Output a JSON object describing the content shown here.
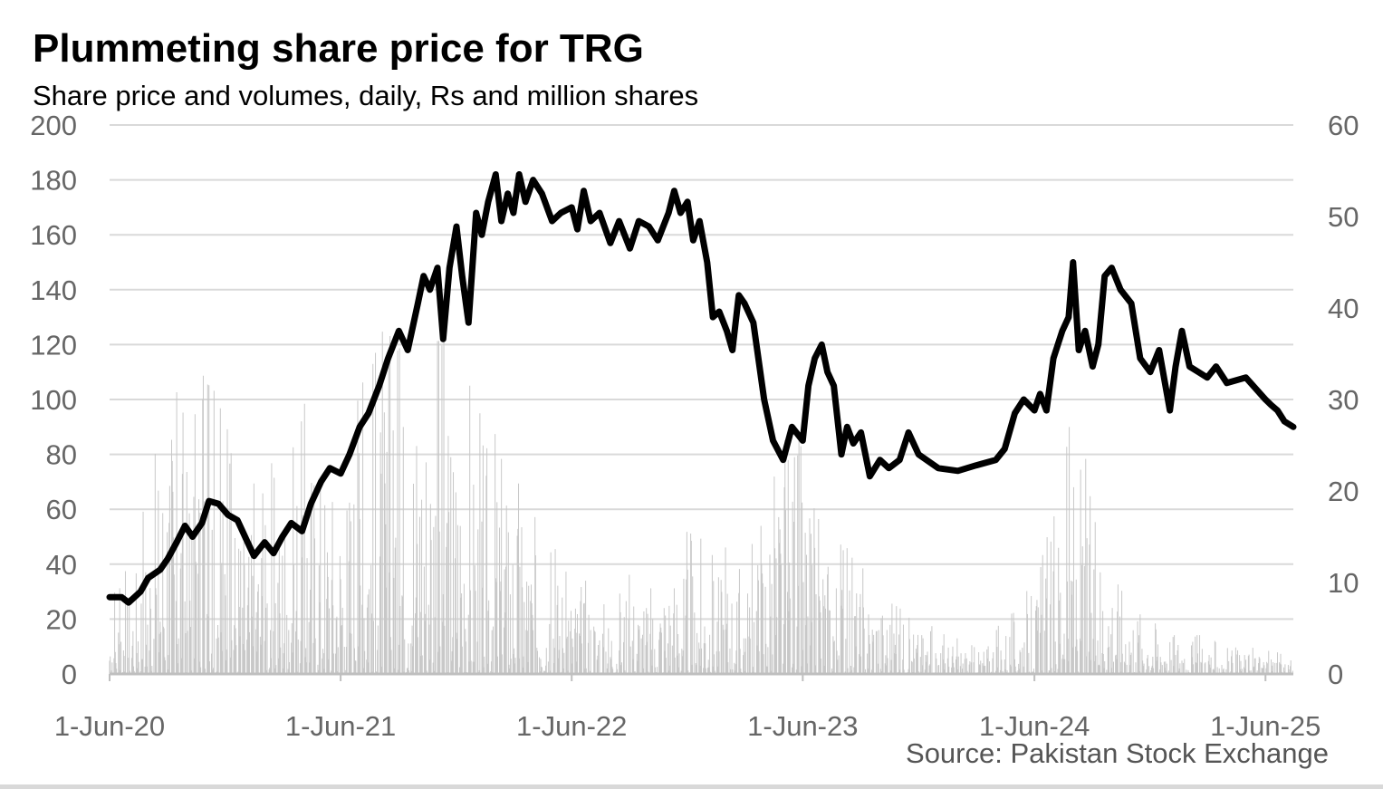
{
  "chart_data": {
    "type": "line",
    "title": "Plummeting share price for TRG",
    "subtitle": "Share price and volumes, daily, Rs and million shares",
    "source": "Source: Pakistan Stock Exchange",
    "x_tick_labels": [
      "1-Jun-20",
      "1-Jun-21",
      "1-Jun-22",
      "1-Jun-23",
      "1-Jun-24",
      "1-Jun-25"
    ],
    "x_tick_dates": [
      "2020-06-01",
      "2021-06-01",
      "2022-06-01",
      "2023-06-01",
      "2024-06-01",
      "2025-06-01"
    ],
    "xlim": [
      "2020-06-01",
      "2025-07-15"
    ],
    "y_left": {
      "ylim": [
        0,
        200
      ],
      "ticks": [
        0,
        20,
        40,
        60,
        80,
        100,
        120,
        140,
        160,
        180,
        200
      ]
    },
    "y_right": {
      "ylim": [
        0,
        60
      ],
      "ticks": [
        0,
        10,
        20,
        30,
        40,
        50,
        60
      ]
    },
    "grid": true,
    "colors": {
      "price": "#000000",
      "volume": "#c8c8c8",
      "grid": "#d9d9d9",
      "axis": "#bfbfbf",
      "tick_text": "#666666"
    },
    "series": [
      {
        "axis": "left",
        "points": [
          [
            "2020-06-01",
            28
          ],
          [
            "2020-06-20",
            28
          ],
          [
            "2020-07-01",
            26
          ],
          [
            "2020-07-20",
            30
          ],
          [
            "2020-08-01",
            35
          ],
          [
            "2020-08-20",
            38
          ],
          [
            "2020-09-01",
            42
          ],
          [
            "2020-09-15",
            48
          ],
          [
            "2020-09-28",
            54
          ],
          [
            "2020-10-10",
            50
          ],
          [
            "2020-10-25",
            55
          ],
          [
            "2020-11-05",
            63
          ],
          [
            "2020-11-20",
            62
          ],
          [
            "2020-12-05",
            58
          ],
          [
            "2020-12-20",
            56
          ],
          [
            "2021-01-05",
            48
          ],
          [
            "2021-01-15",
            43
          ],
          [
            "2021-02-01",
            48
          ],
          [
            "2021-02-15",
            44
          ],
          [
            "2021-03-01",
            50
          ],
          [
            "2021-03-15",
            55
          ],
          [
            "2021-04-01",
            52
          ],
          [
            "2021-04-15",
            62
          ],
          [
            "2021-05-01",
            70
          ],
          [
            "2021-05-15",
            75
          ],
          [
            "2021-06-01",
            73
          ],
          [
            "2021-06-15",
            80
          ],
          [
            "2021-07-01",
            90
          ],
          [
            "2021-07-15",
            95
          ],
          [
            "2021-08-01",
            105
          ],
          [
            "2021-08-15",
            115
          ],
          [
            "2021-09-01",
            125
          ],
          [
            "2021-09-15",
            118
          ],
          [
            "2021-10-01",
            135
          ],
          [
            "2021-10-10",
            145
          ],
          [
            "2021-10-20",
            140
          ],
          [
            "2021-11-01",
            148
          ],
          [
            "2021-11-10",
            122
          ],
          [
            "2021-11-20",
            148
          ],
          [
            "2021-12-01",
            163
          ],
          [
            "2021-12-10",
            145
          ],
          [
            "2021-12-20",
            128
          ],
          [
            "2022-01-01",
            168
          ],
          [
            "2022-01-10",
            160
          ],
          [
            "2022-01-20",
            172
          ],
          [
            "2022-02-01",
            182
          ],
          [
            "2022-02-10",
            165
          ],
          [
            "2022-02-20",
            175
          ],
          [
            "2022-03-01",
            168
          ],
          [
            "2022-03-10",
            182
          ],
          [
            "2022-03-20",
            172
          ],
          [
            "2022-04-01",
            180
          ],
          [
            "2022-04-15",
            175
          ],
          [
            "2022-05-01",
            165
          ],
          [
            "2022-05-15",
            168
          ],
          [
            "2022-06-01",
            170
          ],
          [
            "2022-06-10",
            162
          ],
          [
            "2022-06-20",
            176
          ],
          [
            "2022-07-01",
            165
          ],
          [
            "2022-07-15",
            168
          ],
          [
            "2022-08-01",
            157
          ],
          [
            "2022-08-15",
            165
          ],
          [
            "2022-09-01",
            155
          ],
          [
            "2022-09-15",
            165
          ],
          [
            "2022-10-01",
            163
          ],
          [
            "2022-10-15",
            158
          ],
          [
            "2022-11-01",
            168
          ],
          [
            "2022-11-10",
            176
          ],
          [
            "2022-11-20",
            168
          ],
          [
            "2022-12-01",
            172
          ],
          [
            "2022-12-10",
            158
          ],
          [
            "2022-12-20",
            165
          ],
          [
            "2023-01-01",
            150
          ],
          [
            "2023-01-10",
            130
          ],
          [
            "2023-01-20",
            132
          ],
          [
            "2023-02-01",
            125
          ],
          [
            "2023-02-10",
            118
          ],
          [
            "2023-02-20",
            138
          ],
          [
            "2023-03-01",
            135
          ],
          [
            "2023-03-15",
            128
          ],
          [
            "2023-04-01",
            100
          ],
          [
            "2023-04-15",
            85
          ],
          [
            "2023-05-01",
            78
          ],
          [
            "2023-05-15",
            90
          ],
          [
            "2023-06-01",
            85
          ],
          [
            "2023-06-10",
            105
          ],
          [
            "2023-06-20",
            115
          ],
          [
            "2023-07-01",
            120
          ],
          [
            "2023-07-10",
            110
          ],
          [
            "2023-07-20",
            105
          ],
          [
            "2023-08-01",
            80
          ],
          [
            "2023-08-10",
            90
          ],
          [
            "2023-08-20",
            84
          ],
          [
            "2023-09-01",
            88
          ],
          [
            "2023-09-15",
            72
          ],
          [
            "2023-10-01",
            78
          ],
          [
            "2023-10-15",
            75
          ],
          [
            "2023-11-01",
            78
          ],
          [
            "2023-11-15",
            88
          ],
          [
            "2023-12-01",
            80
          ],
          [
            "2024-01-01",
            75
          ],
          [
            "2024-02-01",
            74
          ],
          [
            "2024-03-01",
            76
          ],
          [
            "2024-04-01",
            78
          ],
          [
            "2024-04-15",
            82
          ],
          [
            "2024-05-01",
            95
          ],
          [
            "2024-05-15",
            100
          ],
          [
            "2024-06-01",
            96
          ],
          [
            "2024-06-10",
            102
          ],
          [
            "2024-06-20",
            96
          ],
          [
            "2024-07-01",
            115
          ],
          [
            "2024-07-15",
            125
          ],
          [
            "2024-07-25",
            130
          ],
          [
            "2024-08-01",
            150
          ],
          [
            "2024-08-10",
            118
          ],
          [
            "2024-08-20",
            125
          ],
          [
            "2024-09-01",
            112
          ],
          [
            "2024-09-10",
            120
          ],
          [
            "2024-09-20",
            145
          ],
          [
            "2024-10-01",
            148
          ],
          [
            "2024-10-15",
            140
          ],
          [
            "2024-11-01",
            135
          ],
          [
            "2024-11-15",
            115
          ],
          [
            "2024-12-01",
            110
          ],
          [
            "2024-12-15",
            118
          ],
          [
            "2025-01-01",
            96
          ],
          [
            "2025-01-10",
            112
          ],
          [
            "2025-01-20",
            125
          ],
          [
            "2025-02-01",
            112
          ],
          [
            "2025-02-15",
            110
          ],
          [
            "2025-03-01",
            108
          ],
          [
            "2025-03-15",
            112
          ],
          [
            "2025-04-01",
            106
          ],
          [
            "2025-05-01",
            108
          ],
          [
            "2025-06-01",
            100
          ],
          [
            "2025-06-10",
            98
          ],
          [
            "2025-06-20",
            96
          ],
          [
            "2025-07-01",
            92
          ],
          [
            "2025-07-15",
            90
          ]
        ]
      },
      {
        "axis": "right",
        "daily_bars": true,
        "points": [
          [
            "2020-06-01",
            8
          ],
          [
            "2020-07-01",
            12
          ],
          [
            "2020-08-01",
            20
          ],
          [
            "2020-09-01",
            38
          ],
          [
            "2020-10-01",
            30
          ],
          [
            "2020-11-01",
            36
          ],
          [
            "2020-12-01",
            28
          ],
          [
            "2021-01-01",
            20
          ],
          [
            "2021-02-01",
            22
          ],
          [
            "2021-03-01",
            25
          ],
          [
            "2021-04-01",
            32
          ],
          [
            "2021-05-01",
            30
          ],
          [
            "2021-06-01",
            25
          ],
          [
            "2021-07-01",
            34
          ],
          [
            "2021-08-01",
            38
          ],
          [
            "2021-09-01",
            40
          ],
          [
            "2021-10-01",
            42
          ],
          [
            "2021-11-01",
            40
          ],
          [
            "2021-12-01",
            35
          ],
          [
            "2022-01-01",
            30
          ],
          [
            "2022-02-01",
            28
          ],
          [
            "2022-03-01",
            25
          ],
          [
            "2022-04-01",
            18
          ],
          [
            "2022-05-01",
            15
          ],
          [
            "2022-06-01",
            12
          ],
          [
            "2022-07-01",
            10
          ],
          [
            "2022-08-01",
            8
          ],
          [
            "2022-09-01",
            12
          ],
          [
            "2022-10-01",
            10
          ],
          [
            "2022-11-01",
            14
          ],
          [
            "2022-12-01",
            16
          ],
          [
            "2023-01-01",
            15
          ],
          [
            "2023-02-01",
            14
          ],
          [
            "2023-03-01",
            12
          ],
          [
            "2023-04-01",
            20
          ],
          [
            "2023-05-01",
            28
          ],
          [
            "2023-06-01",
            26
          ],
          [
            "2023-07-01",
            18
          ],
          [
            "2023-08-01",
            15
          ],
          [
            "2023-09-01",
            12
          ],
          [
            "2023-10-01",
            10
          ],
          [
            "2023-11-01",
            8
          ],
          [
            "2023-12-01",
            6
          ],
          [
            "2024-01-01",
            5
          ],
          [
            "2024-02-01",
            4
          ],
          [
            "2024-03-01",
            3
          ],
          [
            "2024-04-01",
            5
          ],
          [
            "2024-05-01",
            8
          ],
          [
            "2024-06-01",
            10
          ],
          [
            "2024-07-01",
            18
          ],
          [
            "2024-08-01",
            30
          ],
          [
            "2024-09-01",
            20
          ],
          [
            "2024-10-01",
            15
          ],
          [
            "2024-11-01",
            10
          ],
          [
            "2024-12-01",
            8
          ],
          [
            "2025-01-01",
            6
          ],
          [
            "2025-02-01",
            5
          ],
          [
            "2025-03-01",
            4
          ],
          [
            "2025-04-01",
            3
          ],
          [
            "2025-05-01",
            3
          ],
          [
            "2025-06-01",
            3
          ],
          [
            "2025-07-15",
            2
          ]
        ]
      }
    ]
  }
}
